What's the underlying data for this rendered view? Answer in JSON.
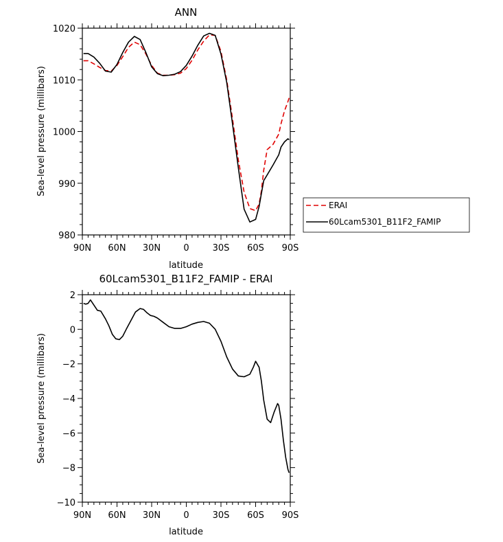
{
  "chart_data": [
    {
      "type": "line",
      "title": "ANN",
      "xlabel": "latitude",
      "ylabel": "Sea-level pressure (millibars)",
      "xlim": [
        90,
        -90
      ],
      "ylim": [
        980,
        1020
      ],
      "x_tick_values": [
        90,
        60,
        30,
        0,
        -30,
        -60,
        -90
      ],
      "x_tick_labels": [
        "90N",
        "60N",
        "30N",
        "0",
        "30S",
        "60S",
        "90S"
      ],
      "y_tick_values": [
        980,
        990,
        1000,
        1010,
        1020
      ],
      "y_tick_labels": [
        "980",
        "990",
        "1000",
        "1010",
        "1020"
      ],
      "legend_position": "right",
      "series": [
        {
          "name": "ERAI",
          "color": "#e00000",
          "dash": "dashed",
          "x": [
            89,
            85,
            80,
            75,
            70,
            65,
            60,
            55,
            50,
            45,
            40,
            35,
            30,
            25,
            20,
            15,
            10,
            5,
            0,
            -5,
            -10,
            -15,
            -20,
            -25,
            -30,
            -35,
            -40,
            -45,
            -50,
            -55,
            -60,
            -63,
            -65,
            -67,
            -70,
            -75,
            -80,
            -82,
            -85,
            -88,
            -89
          ],
          "y": [
            1013.7,
            1013.7,
            1013.1,
            1012.4,
            1011.8,
            1011.7,
            1012.8,
            1014.5,
            1016.3,
            1017.3,
            1016.8,
            1015.0,
            1012.8,
            1011.3,
            1010.9,
            1010.9,
            1011.0,
            1011.3,
            1012.2,
            1013.8,
            1015.8,
            1017.5,
            1018.7,
            1018.6,
            1015.5,
            1010.0,
            1002.5,
            994.5,
            988.3,
            985.1,
            984.7,
            986.0,
            988.5,
            992.5,
            996.5,
            997.5,
            999.5,
            1001.5,
            1004.0,
            1005.8,
            1006.5
          ]
        },
        {
          "name": "60Lcam5301_B11F2_FAMIP",
          "color": "#000000",
          "dash": "solid",
          "x": [
            89,
            85,
            80,
            75,
            70,
            65,
            60,
            55,
            50,
            45,
            40,
            35,
            30,
            25,
            20,
            15,
            10,
            5,
            0,
            -5,
            -10,
            -15,
            -20,
            -25,
            -30,
            -35,
            -40,
            -45,
            -50,
            -55,
            -60,
            -63,
            -65,
            -67,
            -70,
            -75,
            -80,
            -82,
            -85,
            -88,
            -89
          ],
          "y": [
            1015.1,
            1015.1,
            1014.4,
            1013.2,
            1011.7,
            1011.5,
            1013.0,
            1015.3,
            1017.3,
            1018.4,
            1017.8,
            1015.3,
            1012.5,
            1011.2,
            1010.8,
            1010.9,
            1011.1,
            1011.6,
            1012.8,
            1014.6,
            1016.7,
            1018.5,
            1019.0,
            1018.6,
            1015.0,
            1009.5,
            1001.5,
            993.0,
            985.0,
            982.5,
            983.0,
            985.5,
            988.0,
            990.5,
            991.6,
            993.5,
            995.5,
            997.0,
            998.0,
            998.6,
            998.4
          ]
        }
      ]
    },
    {
      "type": "line",
      "title": "60Lcam5301_B11F2_FAMIP - ERAI",
      "xlabel": "latitude",
      "ylabel": "Sea-level pressure (millibars)",
      "xlim": [
        90,
        -90
      ],
      "ylim": [
        -10,
        2
      ],
      "x_tick_values": [
        90,
        60,
        30,
        0,
        -30,
        -60,
        -90
      ],
      "x_tick_labels": [
        "90N",
        "60N",
        "30N",
        "0",
        "30S",
        "60S",
        "90S"
      ],
      "y_tick_values": [
        -10,
        -8,
        -6,
        -4,
        -2,
        0,
        2
      ],
      "y_tick_labels": [
        "-10",
        "-8",
        "-6",
        "-4",
        "-2",
        "0",
        "2"
      ],
      "series": [
        {
          "color": "#000000",
          "dash": "solid",
          "x": [
            89,
            87,
            85,
            83,
            80,
            77,
            74,
            70,
            67,
            64,
            61,
            58,
            55,
            52,
            48,
            44,
            40,
            37,
            34,
            31,
            28,
            25,
            20,
            15,
            10,
            5,
            0,
            -5,
            -10,
            -15,
            -20,
            -25,
            -30,
            -35,
            -40,
            -45,
            -50,
            -55,
            -58,
            -60,
            -63,
            -65,
            -67,
            -70,
            -73,
            -76,
            -79,
            -80,
            -82,
            -84,
            -86,
            -88,
            -89
          ],
          "y": [
            1.5,
            1.45,
            1.5,
            1.7,
            1.4,
            1.1,
            1.05,
            0.6,
            0.2,
            -0.3,
            -0.55,
            -0.6,
            -0.4,
            0.0,
            0.5,
            1.0,
            1.2,
            1.15,
            0.95,
            0.8,
            0.75,
            0.65,
            0.4,
            0.15,
            0.05,
            0.05,
            0.15,
            0.3,
            0.4,
            0.45,
            0.35,
            0.0,
            -0.7,
            -1.6,
            -2.3,
            -2.7,
            -2.75,
            -2.6,
            -2.2,
            -1.85,
            -2.2,
            -3.0,
            -4.1,
            -5.2,
            -5.4,
            -4.8,
            -4.3,
            -4.4,
            -5.2,
            -6.4,
            -7.4,
            -8.1,
            -8.3
          ]
        }
      ]
    }
  ],
  "legend": {
    "items": [
      {
        "label": "ERAI",
        "color": "#e00000",
        "dash": "dashed"
      },
      {
        "label": "60Lcam5301_B11F2_FAMIP",
        "color": "#000000",
        "dash": "solid"
      }
    ]
  }
}
